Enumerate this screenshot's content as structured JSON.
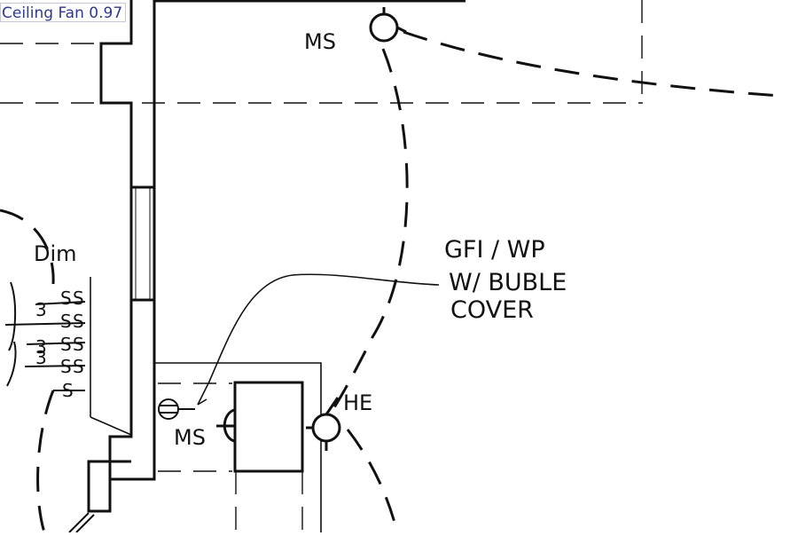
{
  "detection": {
    "label": "Ceiling Fan",
    "score": "0.97"
  },
  "annotations": {
    "ms_top": "MS",
    "ms_bottom": "MS",
    "he": "HE",
    "dim": "Dim",
    "gfi_line1": "GFI / WP",
    "gfi_line2": "W/ BUBLE",
    "gfi_line3": "COVER"
  },
  "switches": [
    {
      "count": "3",
      "symbol": "S",
      "symbol2": "S"
    },
    {
      "count": "",
      "symbol": "S",
      "symbol2": "S"
    },
    {
      "count": "3",
      "symbol": "S",
      "symbol2": "S"
    },
    {
      "count": "3",
      "symbol": "S",
      "symbol2": "S"
    },
    {
      "count": "",
      "symbol": "S",
      "symbol2": ""
    }
  ],
  "colors": {
    "ink": "#111111",
    "label_text": "#2f3a8f",
    "label_border": "#c6c6d8"
  }
}
